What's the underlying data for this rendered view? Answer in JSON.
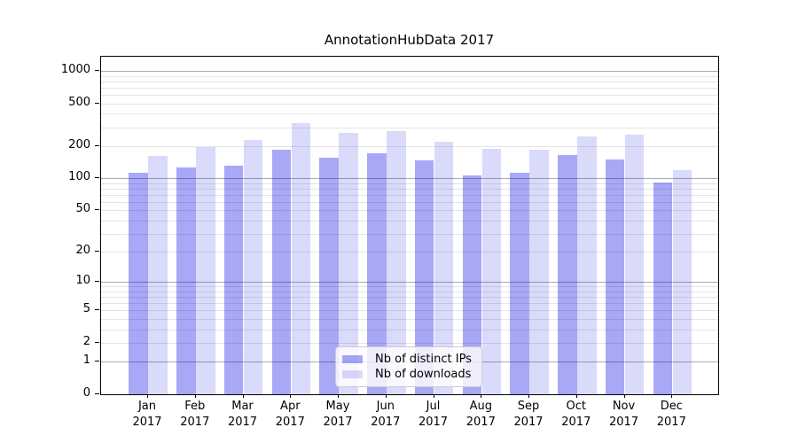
{
  "chart_data": {
    "type": "bar",
    "title": "AnnotationHubData 2017",
    "categories": [
      "Jan",
      "Feb",
      "Mar",
      "Apr",
      "May",
      "Jun",
      "Jul",
      "Aug",
      "Sep",
      "Oct",
      "Nov",
      "Dec"
    ],
    "x_year_label": "2017",
    "series": [
      {
        "name": "Nb of distinct IPs",
        "values": [
          113,
          126,
          132,
          186,
          157,
          170,
          146,
          107,
          113,
          164,
          149,
          91
        ]
      },
      {
        "name": "Nb of downloads",
        "values": [
          162,
          197,
          228,
          325,
          264,
          275,
          218,
          189,
          184,
          244,
          257,
          119
        ]
      }
    ],
    "yscale": "log1p",
    "ylim": [
      0,
      1356
    ],
    "ytick_values": [
      1000,
      500,
      200,
      100,
      50,
      20,
      10,
      5,
      2,
      1,
      0
    ],
    "grid_minor_values": [
      2,
      3,
      4,
      5,
      6,
      7,
      8,
      9,
      20,
      30,
      40,
      50,
      60,
      70,
      80,
      90,
      200,
      300,
      400,
      500,
      600,
      700,
      800,
      900
    ],
    "grid_major_values": [
      1,
      10,
      100,
      1000
    ],
    "legend_position": "lower-center",
    "colors": {
      "bar_distinct_ips": "#0000e6",
      "bar_distinct_ips_alpha": 0.34,
      "bar_downloads": "#0000e6",
      "bar_downloads_alpha": 0.145,
      "grid_major": "#ababab",
      "grid_minor": "#e4e4e4",
      "frame": "#000000"
    }
  }
}
